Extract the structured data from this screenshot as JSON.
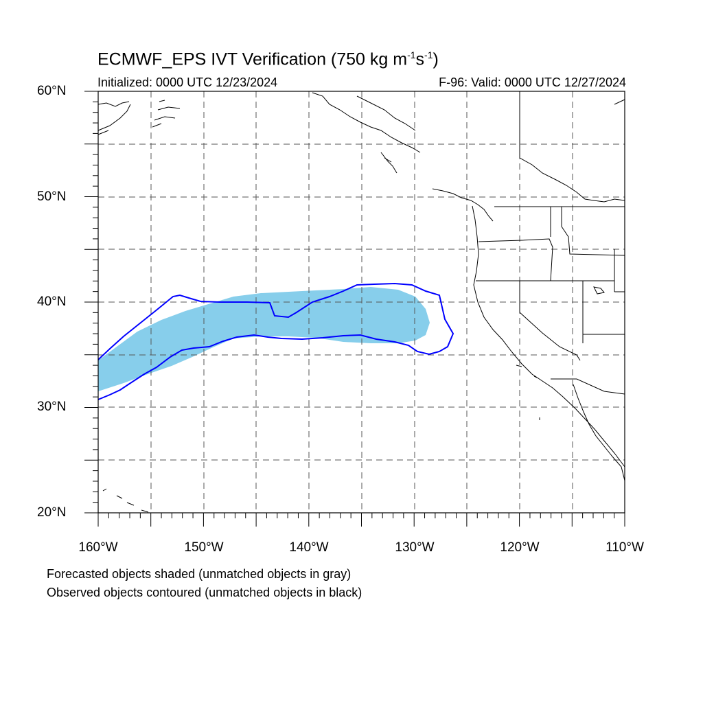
{
  "title": {
    "main_prefix": "ECMWF_EPS IVT Verification (750 kg m",
    "sup1": "-1",
    "mid": "s",
    "sup2": "-1",
    "suffix": ")"
  },
  "subtitle_left": "Initialized: 0000 UTC 12/23/2024",
  "subtitle_right": "F-96: Valid: 0000 UTC 12/27/2024",
  "map": {
    "lon_range": [
      -160,
      -110
    ],
    "lat_range": [
      20,
      60
    ],
    "lat_labels": [
      "60°N",
      "50°N",
      "40°N",
      "30°N",
      "20°N"
    ],
    "lon_labels": [
      "160°W",
      "150°W",
      "140°W",
      "130°W",
      "120°W",
      "110°W"
    ],
    "forecast_fill_color": "#87CEEB",
    "observed_contour_color": "#0000ff",
    "gridlines": "dashed"
  },
  "legend": {
    "line1": "Forecasted objects shaded (unmatched objects in gray)",
    "line2": "Observed objects contoured (unmatched objects in black)"
  }
}
